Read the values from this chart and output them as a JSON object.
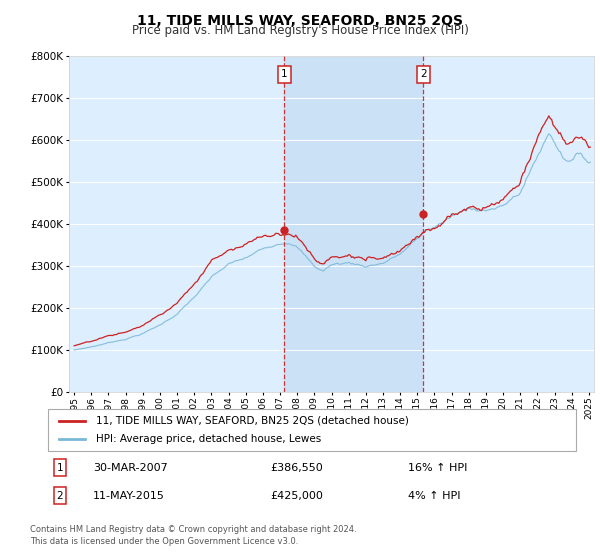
{
  "title": "11, TIDE MILLS WAY, SEAFORD, BN25 2QS",
  "subtitle": "Price paid vs. HM Land Registry's House Price Index (HPI)",
  "legend_line1": "11, TIDE MILLS WAY, SEAFORD, BN25 2QS (detached house)",
  "legend_line2": "HPI: Average price, detached house, Lewes",
  "footnote": "Contains HM Land Registry data © Crown copyright and database right 2024.\nThis data is licensed under the Open Government Licence v3.0.",
  "transaction1_label": "1",
  "transaction1_date": "30-MAR-2007",
  "transaction1_price": "£386,550",
  "transaction1_hpi": "16% ↑ HPI",
  "transaction2_label": "2",
  "transaction2_date": "11-MAY-2015",
  "transaction2_price": "£425,000",
  "transaction2_hpi": "4% ↑ HPI",
  "sale1_year": 2007.24,
  "sale1_price": 386550,
  "sale2_year": 2015.36,
  "sale2_price": 425000,
  "plot_bg_color": "#ddeeff",
  "shade_color": "#c8dff5",
  "hpi_line_color": "#7ab8d8",
  "price_line_color": "#cc2222",
  "marker_color": "#cc2222",
  "vline_color": "#cc2222",
  "ylim_min": 0,
  "ylim_max": 800000,
  "xlim_min": 1994.7,
  "xlim_max": 2025.3,
  "x_ticks_start": 1995,
  "x_ticks_end": 2025
}
